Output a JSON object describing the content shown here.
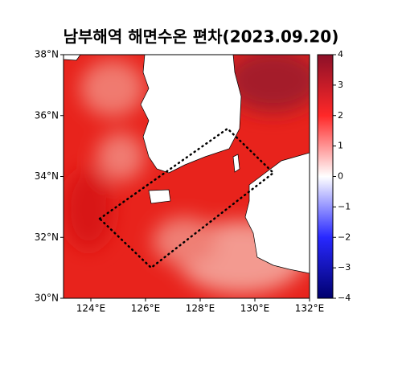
{
  "map": {
    "title": "남부해역 해면수온 편차(2023.09.20)",
    "xlim": [
      123,
      132
    ],
    "ylim": [
      30,
      38
    ],
    "xticks": [
      {
        "value": 124,
        "label": "124°E"
      },
      {
        "value": 126,
        "label": "126°E"
      },
      {
        "value": 128,
        "label": "128°E"
      },
      {
        "value": 130,
        "label": "130°E"
      },
      {
        "value": 132,
        "label": "132°E"
      }
    ],
    "yticks": [
      {
        "value": 30,
        "label": "30°N"
      },
      {
        "value": 32,
        "label": "32°N"
      },
      {
        "value": 34,
        "label": "34°N"
      },
      {
        "value": 36,
        "label": "36°N"
      },
      {
        "value": 38,
        "label": "38°N"
      }
    ],
    "colorbar": {
      "lim": [
        -4,
        4
      ],
      "ticks": [
        {
          "value": -4,
          "label": "−4"
        },
        {
          "value": -3,
          "label": "−3"
        },
        {
          "value": -2,
          "label": "−2"
        },
        {
          "value": -1,
          "label": "−1"
        },
        0,
        1,
        2,
        3,
        4
      ]
    }
  }
}
